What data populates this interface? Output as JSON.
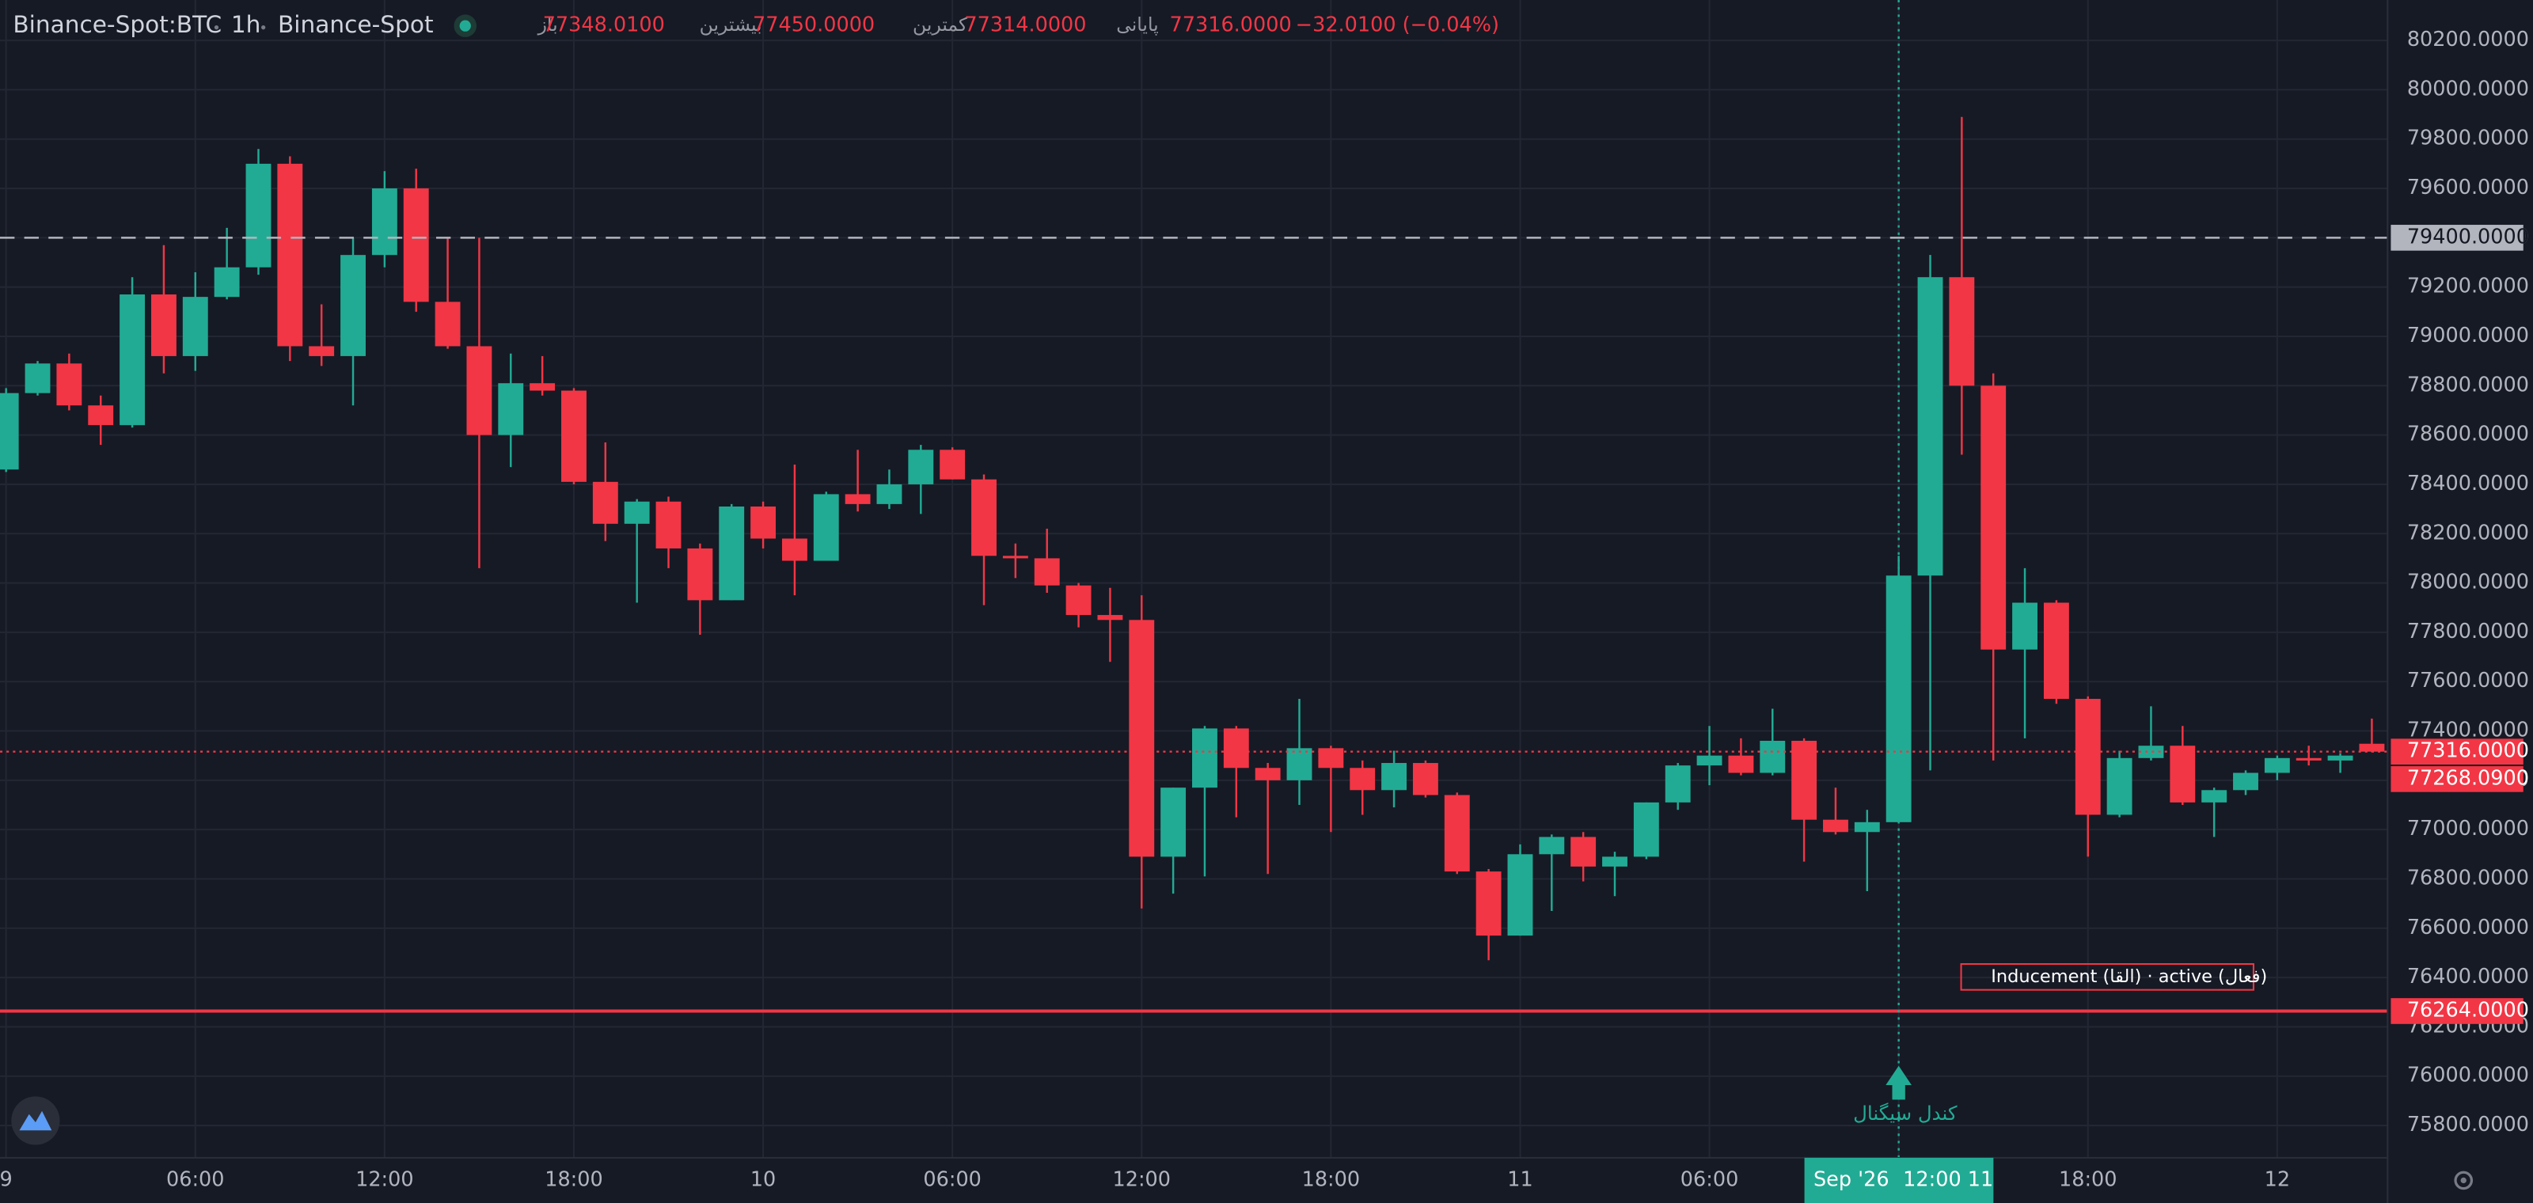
{
  "header": {
    "symbol": "Binance-Spot:BTC",
    "interval": "1h",
    "exchange": "Binance-Spot",
    "fields": [
      {
        "label": "باز",
        "value": "77348.0100"
      },
      {
        "label": "بیشترین",
        "value": "77450.0000"
      },
      {
        "label": "کمترین",
        "value": "77314.0000"
      },
      {
        "label": "پایانی",
        "value": "77316.0000"
      }
    ],
    "change": "−32.0100 (−0.04%)"
  },
  "annotations": [
    {
      "text": "Inducement (القا) · active (فعال)"
    }
  ],
  "chart_data": {
    "type": "candlestick",
    "categories": [
      "9",
      null,
      null,
      null,
      null,
      null,
      "06:00",
      null,
      null,
      null,
      null,
      null,
      "12:00",
      null,
      null,
      null,
      null,
      null,
      "18:00",
      null,
      null,
      null,
      null,
      null,
      "10",
      null,
      null,
      null,
      null,
      null,
      "06:00",
      null,
      null,
      null,
      null,
      null,
      "12:00",
      null,
      null,
      null,
      null,
      null,
      "18:00",
      null,
      null,
      null,
      null,
      null,
      "11",
      null,
      null,
      null,
      null,
      null,
      "06:00",
      null,
      null,
      null,
      null,
      null,
      "12:00 11",
      null,
      null,
      null,
      null,
      null,
      "18:00",
      null,
      null,
      null,
      null,
      null,
      "12",
      null,
      null,
      null
    ],
    "open": [
      78460,
      78770,
      78890,
      78720,
      78640,
      79170,
      78920,
      79160,
      79280,
      79700,
      78960,
      78920,
      79330,
      79600,
      79140,
      78960,
      78600,
      78810,
      78780,
      78410,
      78240,
      78330,
      78140,
      77930,
      78310,
      78180,
      78090,
      78360,
      78320,
      78400,
      78540,
      78420,
      78110,
      78100,
      77990,
      77870,
      77850,
      76890,
      77170,
      77410,
      77250,
      77200,
      77330,
      77250,
      77160,
      77270,
      77140,
      76830,
      76570,
      76900,
      76970,
      76850,
      76890,
      77110,
      77260,
      77300,
      77230,
      77360,
      77040,
      76990,
      77030,
      78030,
      79240,
      78800,
      77730,
      77920,
      77530,
      77060,
      77290,
      77340,
      77110,
      77160,
      77230,
      77290,
      77280,
      77348.01
    ],
    "high": [
      78790,
      78900,
      78930,
      78760,
      79240,
      79370,
      79260,
      79440,
      79760,
      79730,
      79130,
      79400,
      79670,
      79680,
      79400,
      79400,
      78930,
      78920,
      78790,
      78570,
      78340,
      78350,
      78160,
      78320,
      78330,
      78480,
      78370,
      78540,
      78460,
      78560,
      78550,
      78440,
      78160,
      78220,
      78000,
      77980,
      77950,
      77170,
      77420,
      77420,
      77270,
      77530,
      77340,
      77280,
      77320,
      77280,
      77150,
      76840,
      76940,
      76980,
      76990,
      76910,
      77110,
      77270,
      77420,
      77370,
      77490,
      77370,
      77170,
      77080,
      78110,
      79330,
      79890,
      78850,
      78060,
      77930,
      77540,
      77320,
      77500,
      77420,
      77170,
      77240,
      77300,
      77340,
      77310,
      77450
    ],
    "low": [
      78450,
      78760,
      78700,
      78560,
      78630,
      78850,
      78860,
      79150,
      79250,
      78900,
      78880,
      78720,
      79280,
      79100,
      78950,
      78060,
      78470,
      78760,
      78400,
      78170,
      77920,
      78060,
      77790,
      77930,
      78140,
      77950,
      78090,
      78290,
      78300,
      78280,
      78420,
      77910,
      78020,
      77960,
      77820,
      77680,
      76680,
      76740,
      76810,
      77050,
      76820,
      77100,
      76990,
      77060,
      77090,
      77130,
      76820,
      76470,
      76570,
      76670,
      76790,
      76730,
      76880,
      77080,
      77180,
      77220,
      77220,
      76870,
      76980,
      76750,
      77030,
      77240,
      78520,
      77280,
      77370,
      77510,
      76890,
      77050,
      77280,
      77100,
      76970,
      77140,
      77200,
      77260,
      77230,
      77314
    ],
    "close": [
      78770,
      78890,
      78720,
      78640,
      79170,
      78920,
      79160,
      79280,
      79700,
      78960,
      78920,
      79330,
      79600,
      79140,
      78960,
      78600,
      78810,
      78780,
      78410,
      78240,
      78330,
      78140,
      77930,
      78310,
      78180,
      78090,
      78360,
      78320,
      78400,
      78540,
      78420,
      78110,
      78100,
      77990,
      77870,
      77850,
      76890,
      77170,
      77410,
      77250,
      77200,
      77330,
      77250,
      77160,
      77270,
      77140,
      76830,
      76570,
      76900,
      76970,
      76850,
      76890,
      77110,
      77260,
      77300,
      77230,
      77360,
      77040,
      76990,
      77030,
      78030,
      79240,
      78800,
      77730,
      77920,
      77530,
      77060,
      77290,
      77340,
      77110,
      77160,
      77230,
      77290,
      77280,
      77300,
      77316
    ],
    "up_color": "#22ab94",
    "down_color": "#f23645",
    "ylim": [
      75669,
      80364
    ],
    "yticks": [
      {
        "value": 75800,
        "label": "75800.0000"
      },
      {
        "value": 76000,
        "label": "76000.0000"
      },
      {
        "value": 76200,
        "label": "76200.0000"
      },
      {
        "value": 76400,
        "label": "76400.0000"
      },
      {
        "value": 76600,
        "label": "76600.0000"
      },
      {
        "value": 76800,
        "label": "76800.0000"
      },
      {
        "value": 77000,
        "label": "77000.0000"
      },
      {
        "value": 77200,
        "label": "77200.0000"
      },
      {
        "value": 77400,
        "label": "77400.0000"
      },
      {
        "value": 77600,
        "label": "77600.0000"
      },
      {
        "value": 77800,
        "label": "77800.0000"
      },
      {
        "value": 78000,
        "label": "78000.0000"
      },
      {
        "value": 78200,
        "label": "78200.0000"
      },
      {
        "value": 78400,
        "label": "78400.0000"
      },
      {
        "value": 78600,
        "label": "78600.0000"
      },
      {
        "value": 78800,
        "label": "78800.0000"
      },
      {
        "value": 79000,
        "label": "79000.0000"
      },
      {
        "value": 79200,
        "label": "79200.0000"
      },
      {
        "value": 79400,
        "label": "79400.0000"
      },
      {
        "value": 79600,
        "label": "79600.0000"
      },
      {
        "value": 79800,
        "label": "79800.0000"
      },
      {
        "value": 80000,
        "label": "80000.0000"
      },
      {
        "value": 80200,
        "label": "80200.0000"
      }
    ],
    "grid": true,
    "price_lines": [
      {
        "value": 79400,
        "label": "79400.0000",
        "color": "#b2b5be",
        "style": "dashed"
      },
      {
        "value": 77316,
        "label": "77316.0000",
        "color": "#f23645",
        "style": "dotted"
      },
      {
        "value": 77268.09,
        "label": "77268.0900",
        "color": "#f23645",
        "style": "none"
      },
      {
        "value": 76264,
        "label": "76264.0000",
        "color": "#f23645",
        "style": "solid"
      }
    ],
    "crosshair_date": "Sep '26",
    "signal": {
      "index": 60,
      "label": "کندل سیگنال"
    }
  }
}
